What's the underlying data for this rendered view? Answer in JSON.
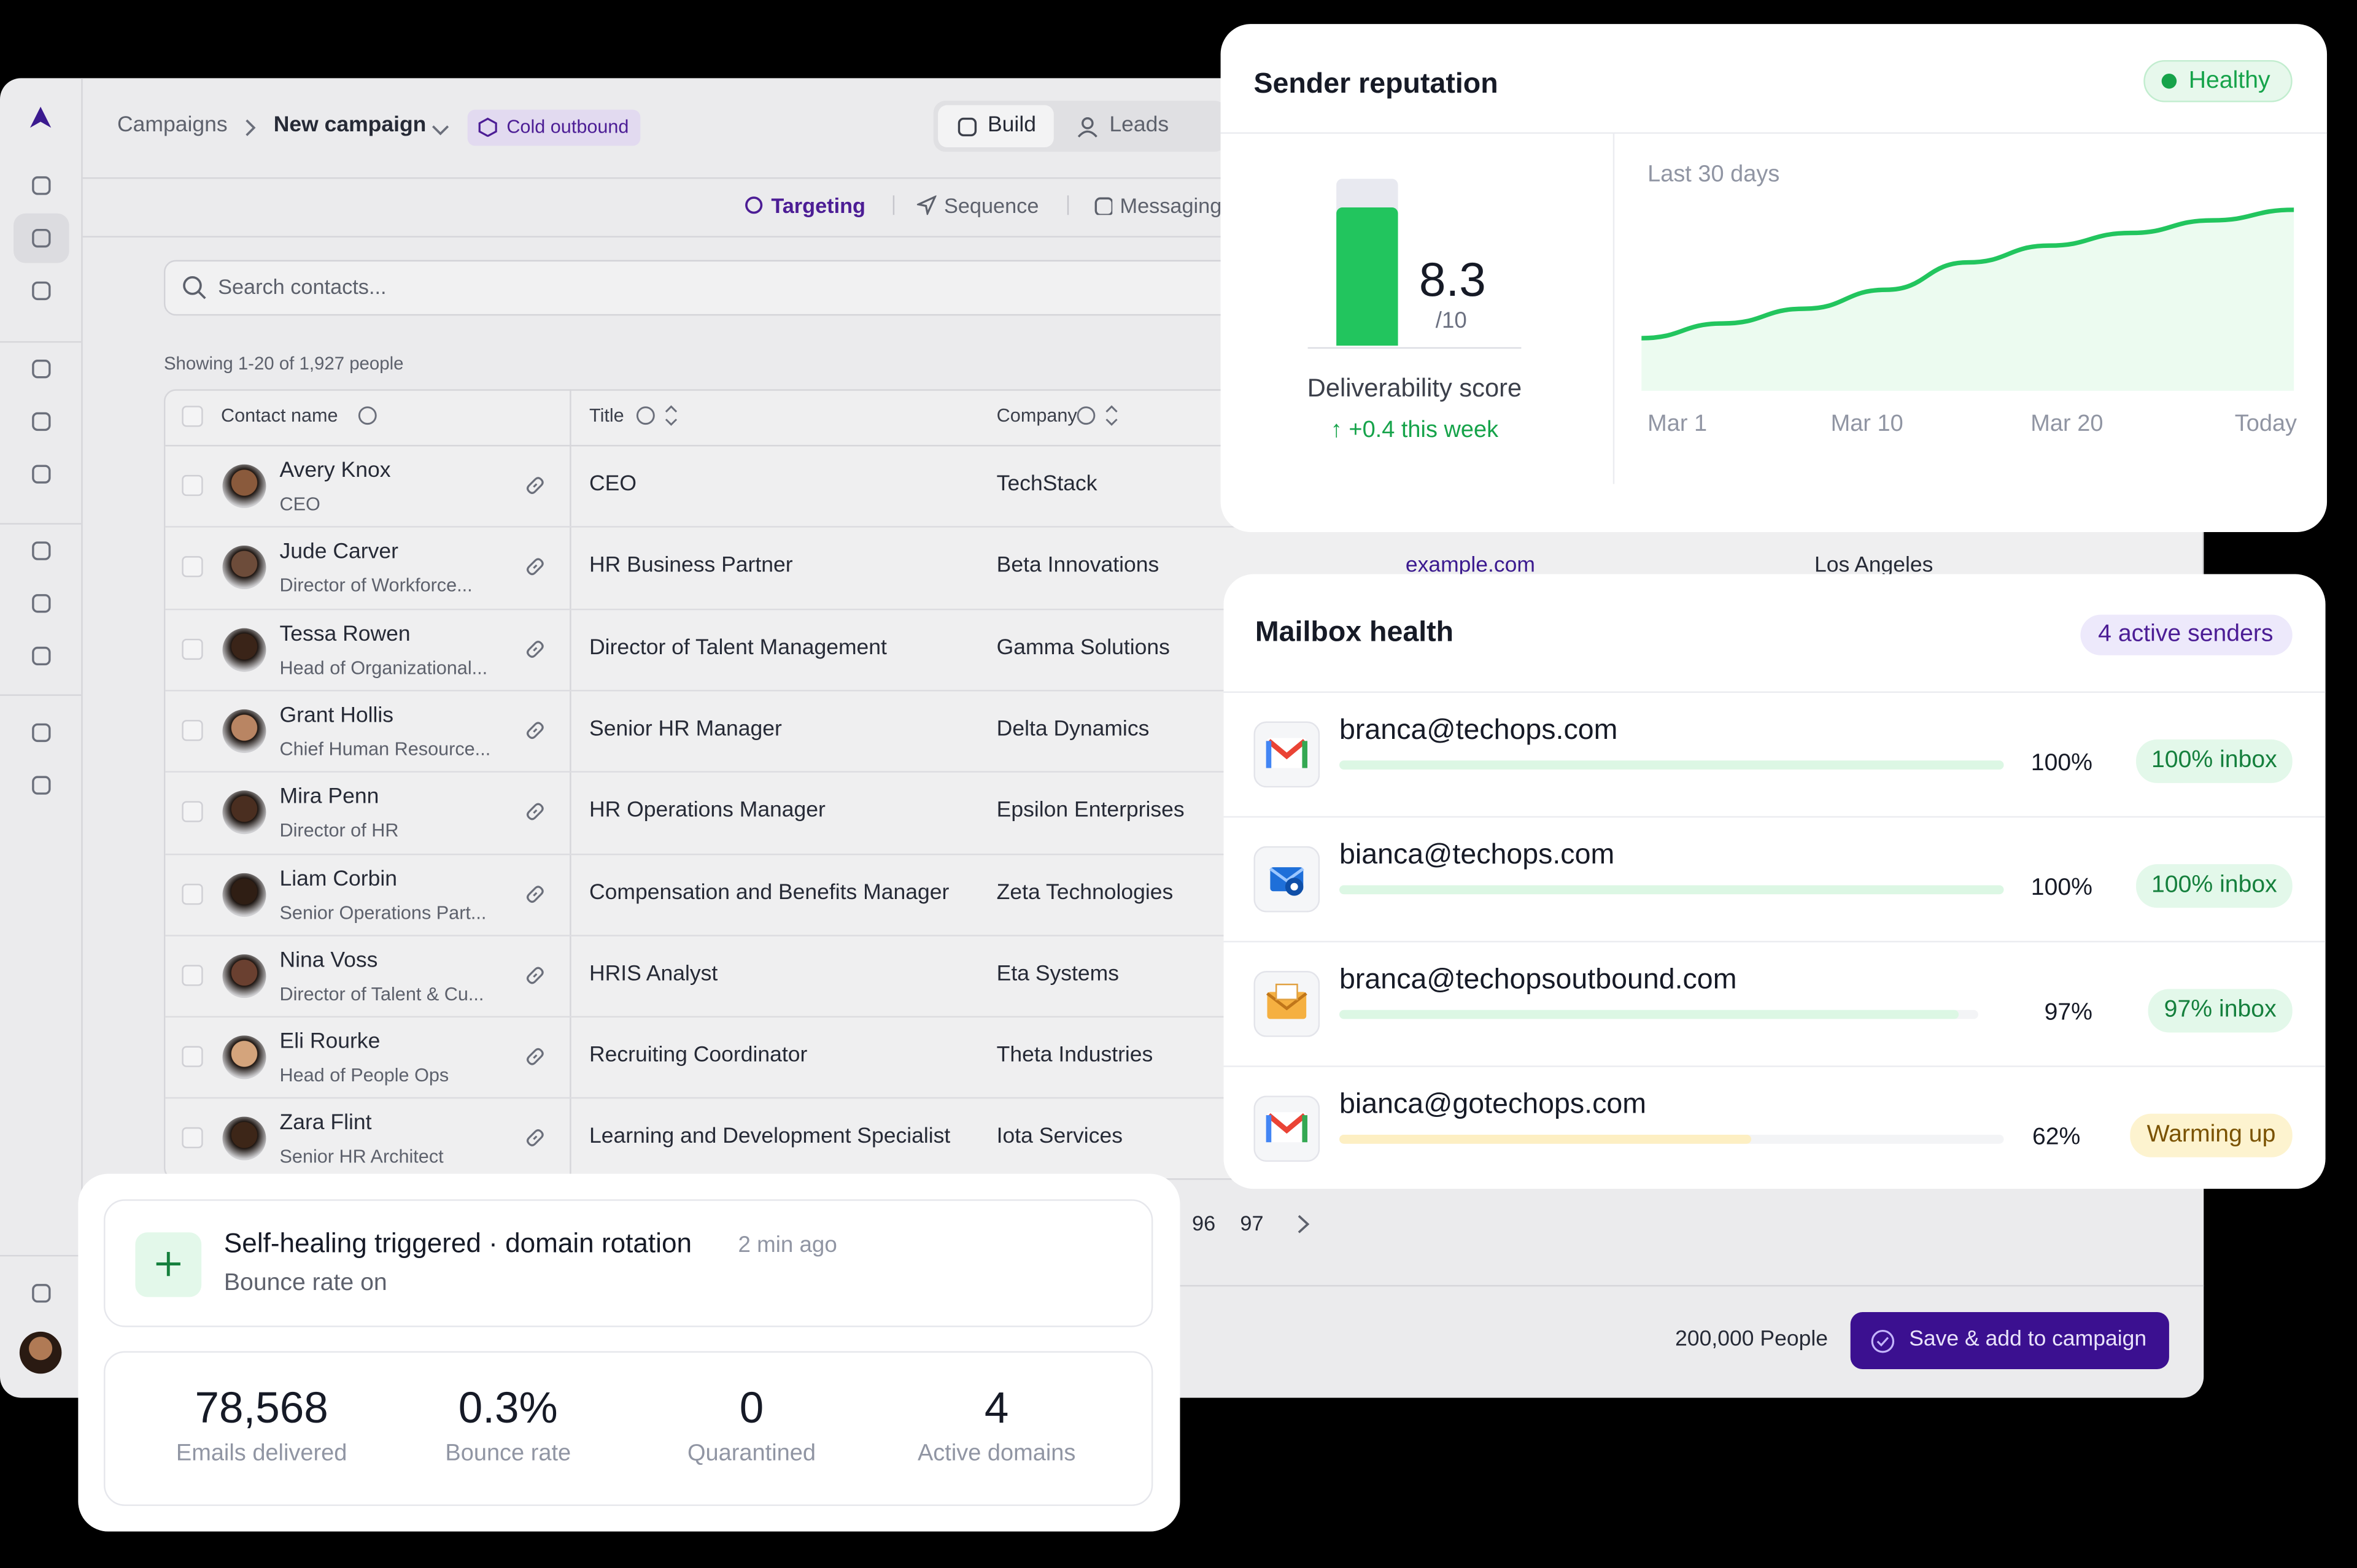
{
  "app": {
    "breadcrumb": [
      "Campaigns",
      "New campaign"
    ],
    "badge": "Cold outbound",
    "tabs": [
      "Build",
      "Leads"
    ],
    "subtabs": [
      "Targeting",
      "Sequence",
      "Messaging"
    ],
    "search_placeholder": "Search contacts...",
    "showing": "Showing 1-20 of 1,927 people",
    "table": {
      "headers": [
        "Contact name",
        "Title",
        "Company"
      ],
      "rows": [
        {
          "name": "Avery Knox",
          "subtitle": "CEO",
          "title": "CEO",
          "company": "TechStack"
        },
        {
          "name": "Jude Carver",
          "subtitle": "Director of Workforce...",
          "title": "HR Business Partner",
          "company": "Beta Innovations",
          "website": "example.com",
          "city": "Los Angeles"
        },
        {
          "name": "Tessa Rowen",
          "subtitle": "Head of Organizational...",
          "title": "Director of Talent Management",
          "company": "Gamma Solutions"
        },
        {
          "name": "Grant Hollis",
          "subtitle": "Chief Human Resource...",
          "title": "Senior HR Manager",
          "company": "Delta Dynamics"
        },
        {
          "name": "Mira Penn",
          "subtitle": "Director of HR",
          "title": "HR Operations Manager",
          "company": "Epsilon Enterprises"
        },
        {
          "name": "Liam Corbin",
          "subtitle": "Senior Operations Part...",
          "title": "Compensation and Benefits Manager",
          "company": "Zeta Technologies"
        },
        {
          "name": "Nina Voss",
          "subtitle": "Director of Talent & Cu...",
          "title": "HRIS Analyst",
          "company": "Eta Systems"
        },
        {
          "name": "Eli Rourke",
          "subtitle": "Head of People Ops",
          "title": "Recruiting Coordinator",
          "company": "Theta Industries"
        },
        {
          "name": "Zara Flint",
          "subtitle": "Senior HR Architect",
          "title": "Learning and Development Specialist",
          "company": "Iota Services"
        }
      ]
    },
    "pagination": [
      "96",
      "97"
    ],
    "footer": {
      "count": "200,000 People",
      "button": "Save & add to campaign"
    }
  },
  "sender_reputation": {
    "title": "Sender reputation",
    "status": "Healthy",
    "score": 8.3,
    "score_range": [
      0,
      10
    ],
    "score_suffix": "/10",
    "score_label": "Deliverability score",
    "change": "↑ +0.4 this week",
    "trend": {
      "label": "Last 30 days",
      "x_labels": [
        "Mar 1",
        "Mar 10",
        "Mar 20",
        "Today"
      ],
      "values": [
        25,
        32,
        39,
        48,
        61,
        69,
        75,
        81,
        86
      ],
      "ylim": [
        0,
        100
      ]
    }
  },
  "mailbox_health": {
    "title": "Mailbox health",
    "badge": "4 active senders",
    "rows": [
      {
        "email": "branca@techops.com",
        "percent": 100,
        "percent_label": "100%",
        "status": "100% inbox",
        "icon": "gmail",
        "tone": "green"
      },
      {
        "email": "bianca@techops.com",
        "percent": 100,
        "percent_label": "100%",
        "status": "100% inbox",
        "icon": "outlook",
        "tone": "green"
      },
      {
        "email": "branca@techopsoutbound.com",
        "percent": 97,
        "percent_label": "97%",
        "status": "97% inbox",
        "icon": "envelope",
        "tone": "green"
      },
      {
        "email": "bianca@gotechops.com",
        "percent": 62,
        "percent_label": "62%",
        "status": "Warming up",
        "icon": "gmail",
        "tone": "yellow"
      }
    ]
  },
  "self_healing": {
    "title": "Self-healing triggered · domain rotation",
    "time": "2 min ago",
    "detail": "Bounce rate on",
    "stats": [
      {
        "value": "78,568",
        "label": "Emails delivered"
      },
      {
        "value": "0.3%",
        "label": "Bounce rate"
      },
      {
        "value": "0",
        "label": "Quarantined"
      },
      {
        "value": "4",
        "label": "Active domains"
      }
    ]
  }
}
